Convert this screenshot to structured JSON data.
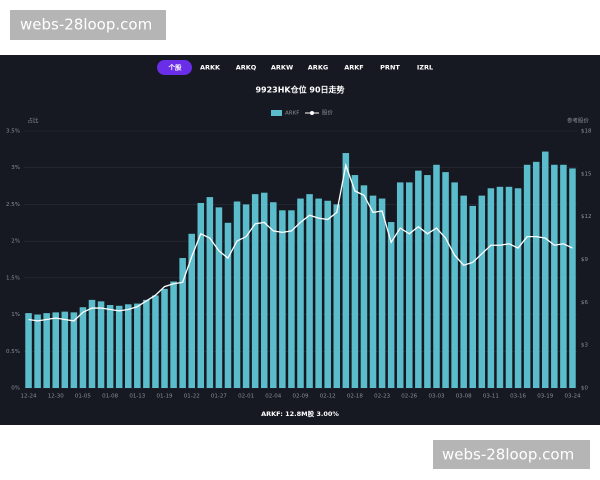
{
  "watermarks": [
    "webs-28loop.com",
    "webs-28loop.com"
  ],
  "tabs": [
    "个股",
    "ARKK",
    "ARKQ",
    "ARKW",
    "ARKG",
    "ARKF",
    "PRNT",
    "IZRL"
  ],
  "chart_data": {
    "type": "bar",
    "title": "9923HK仓位 90日走势",
    "ylabel": "占比",
    "y2label": "参考股价",
    "footer": "ARKF:  12.8M股 3.00%",
    "grid": true,
    "categories": [
      "12-24",
      null,
      null,
      "12-30",
      null,
      null,
      "01-05",
      null,
      null,
      "01-08",
      null,
      null,
      "01-13",
      null,
      null,
      "01-19",
      null,
      null,
      "01-22",
      null,
      null,
      "01-27",
      null,
      null,
      "02-01",
      null,
      null,
      "02-04",
      null,
      null,
      "02-09",
      null,
      null,
      "02-12",
      null,
      null,
      "02-18",
      null,
      null,
      "02-23",
      null,
      null,
      "02-26",
      null,
      null,
      "03-03",
      null,
      null,
      "03-08",
      null,
      null,
      "03-11",
      null,
      null,
      "03-16",
      null,
      null,
      "03-19",
      null,
      null,
      "03-24"
    ],
    "series": [
      {
        "name": "ARKF",
        "type": "bar",
        "color": "#5bbdcc",
        "values": [
          1.02,
          1.0,
          1.02,
          1.03,
          1.04,
          1.03,
          1.1,
          1.2,
          1.18,
          1.13,
          1.12,
          1.14,
          1.15,
          1.2,
          1.26,
          1.35,
          1.45,
          1.77,
          2.1,
          2.52,
          2.6,
          2.46,
          2.25,
          2.54,
          2.5,
          2.64,
          2.66,
          2.53,
          2.42,
          2.42,
          2.58,
          2.64,
          2.58,
          2.55,
          2.5,
          3.2,
          2.9,
          2.76,
          2.62,
          2.58,
          2.26,
          2.8,
          2.8,
          2.96,
          2.9,
          3.04,
          2.94,
          2.8,
          2.62,
          2.48,
          2.62,
          2.72,
          2.74,
          2.74,
          2.72,
          3.04,
          3.08,
          3.22,
          3.04,
          3.04,
          2.99
        ]
      },
      {
        "name": "股价",
        "type": "line",
        "axis": "y2",
        "color": "#ffffff",
        "values": [
          4.8,
          4.7,
          4.8,
          4.9,
          4.8,
          4.7,
          5.3,
          5.6,
          5.6,
          5.5,
          5.4,
          5.5,
          5.7,
          6.1,
          6.5,
          7.1,
          7.3,
          7.4,
          9.2,
          10.8,
          10.5,
          9.6,
          9.1,
          10.3,
          10.6,
          11.5,
          11.6,
          11.0,
          10.9,
          11.0,
          11.6,
          12.1,
          11.9,
          11.8,
          12.3,
          15.6,
          13.8,
          13.5,
          12.3,
          12.4,
          10.2,
          11.2,
          10.8,
          11.3,
          10.8,
          11.2,
          10.5,
          9.3,
          8.6,
          8.8,
          9.4,
          10.0,
          10.0,
          10.1,
          9.8,
          10.6,
          10.6,
          10.5,
          10.0,
          10.1,
          9.8
        ]
      }
    ],
    "ylim": [
      0,
      3.5
    ],
    "yticks": [
      {
        "value": 0,
        "label": "0%"
      },
      {
        "value": 0.5,
        "label": "0.5%"
      },
      {
        "value": 1,
        "label": "1%"
      },
      {
        "value": 1.5,
        "label": "1.5%"
      },
      {
        "value": 2,
        "label": "2%"
      },
      {
        "value": 2.5,
        "label": "2.5%"
      },
      {
        "value": 3,
        "label": "3%"
      },
      {
        "value": 3.5,
        "label": "3.5%"
      }
    ],
    "y2lim": [
      0,
      18
    ],
    "y2ticks": [
      {
        "value": 0,
        "label": "$0"
      },
      {
        "value": 3,
        "label": "$3"
      },
      {
        "value": 6,
        "label": "$6"
      },
      {
        "value": 9,
        "label": "$9"
      },
      {
        "value": 12,
        "label": "$12"
      },
      {
        "value": 15,
        "label": "$15"
      },
      {
        "value": 18,
        "label": "$18"
      }
    ]
  }
}
